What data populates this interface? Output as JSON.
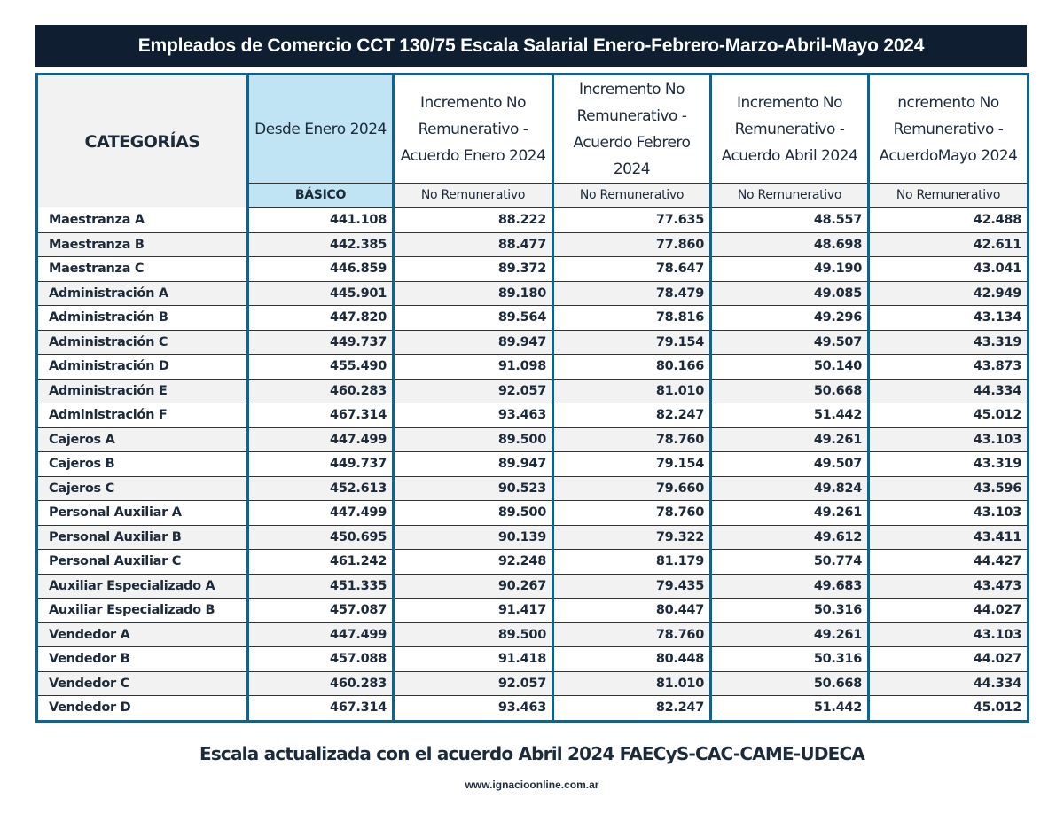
{
  "title": "Empleados de Comercio CCT 130/75 Escala Salarial Enero-Febrero-Marzo-Abril-Mayo 2024",
  "table": {
    "headers": [
      "CATEGORÍAS",
      "Desde Enero 2024",
      "Incremento No Remunerativo - Acuerdo Enero 2024",
      "Incremento No Remunerativo - Acuerdo Febrero 2024",
      "Incremento No Remunerativo - Acuerdo Abril 2024",
      "ncremento No Remunerativo - AcuerdoMayo 2024"
    ],
    "subheaders": [
      "",
      "BÁSICO",
      "No Remunerativo",
      "No Remunerativo",
      "No Remunerativo",
      "No Remunerativo"
    ],
    "rows": [
      [
        "Maestranza A",
        "441.108",
        "88.222",
        "77.635",
        "48.557",
        "42.488"
      ],
      [
        "Maestranza B",
        "442.385",
        "88.477",
        "77.860",
        "48.698",
        "42.611"
      ],
      [
        "Maestranza C",
        "446.859",
        "89.372",
        "78.647",
        "49.190",
        "43.041"
      ],
      [
        "Administración A",
        "445.901",
        "89.180",
        "78.479",
        "49.085",
        "42.949"
      ],
      [
        "Administración B",
        "447.820",
        "89.564",
        "78.816",
        "49.296",
        "43.134"
      ],
      [
        "Administración C",
        "449.737",
        "89.947",
        "79.154",
        "49.507",
        "43.319"
      ],
      [
        "Administración D",
        "455.490",
        "91.098",
        "80.166",
        "50.140",
        "43.873"
      ],
      [
        "Administración E",
        "460.283",
        "92.057",
        "81.010",
        "50.668",
        "44.334"
      ],
      [
        "Administración F",
        "467.314",
        "93.463",
        "82.247",
        "51.442",
        "45.012"
      ],
      [
        "Cajeros A",
        "447.499",
        "89.500",
        "78.760",
        "49.261",
        "43.103"
      ],
      [
        "Cajeros B",
        "449.737",
        "89.947",
        "79.154",
        "49.507",
        "43.319"
      ],
      [
        "Cajeros C",
        "452.613",
        "90.523",
        "79.660",
        "49.824",
        "43.596"
      ],
      [
        "Personal Auxiliar A",
        "447.499",
        "89.500",
        "78.760",
        "49.261",
        "43.103"
      ],
      [
        "Personal Auxiliar B",
        "450.695",
        "90.139",
        "79.322",
        "49.612",
        "43.411"
      ],
      [
        "Personal Auxiliar C",
        "461.242",
        "92.248",
        "81.179",
        "50.774",
        "44.427"
      ],
      [
        "Auxiliar Especializado A",
        "451.335",
        "90.267",
        "79.435",
        "49.683",
        "43.473"
      ],
      [
        "Auxiliar Especializado B",
        "457.087",
        "91.417",
        "80.447",
        "50.316",
        "44.027"
      ],
      [
        "Vendedor A",
        "447.499",
        "89.500",
        "78.760",
        "49.261",
        "43.103"
      ],
      [
        "Vendedor B",
        "457.088",
        "91.418",
        "80.448",
        "50.316",
        "44.027"
      ],
      [
        "Vendedor C",
        "460.283",
        "92.057",
        "81.010",
        "50.668",
        "44.334"
      ],
      [
        "Vendedor D",
        "467.314",
        "93.463",
        "82.247",
        "51.442",
        "45.012"
      ]
    ]
  },
  "footer": {
    "note": "Escala  actualizada con el acuerdo Abril 2024 FAECyS-CAC-CAME-UDECA",
    "url": "www.ignacioonline.com.ar"
  },
  "colors": {
    "title_bg": "#0f1e30",
    "border": "#1a5f8a",
    "basic_bg": "#c0e4f4",
    "alt_row": "#f2f2f2",
    "text": "#1c2a3a"
  }
}
